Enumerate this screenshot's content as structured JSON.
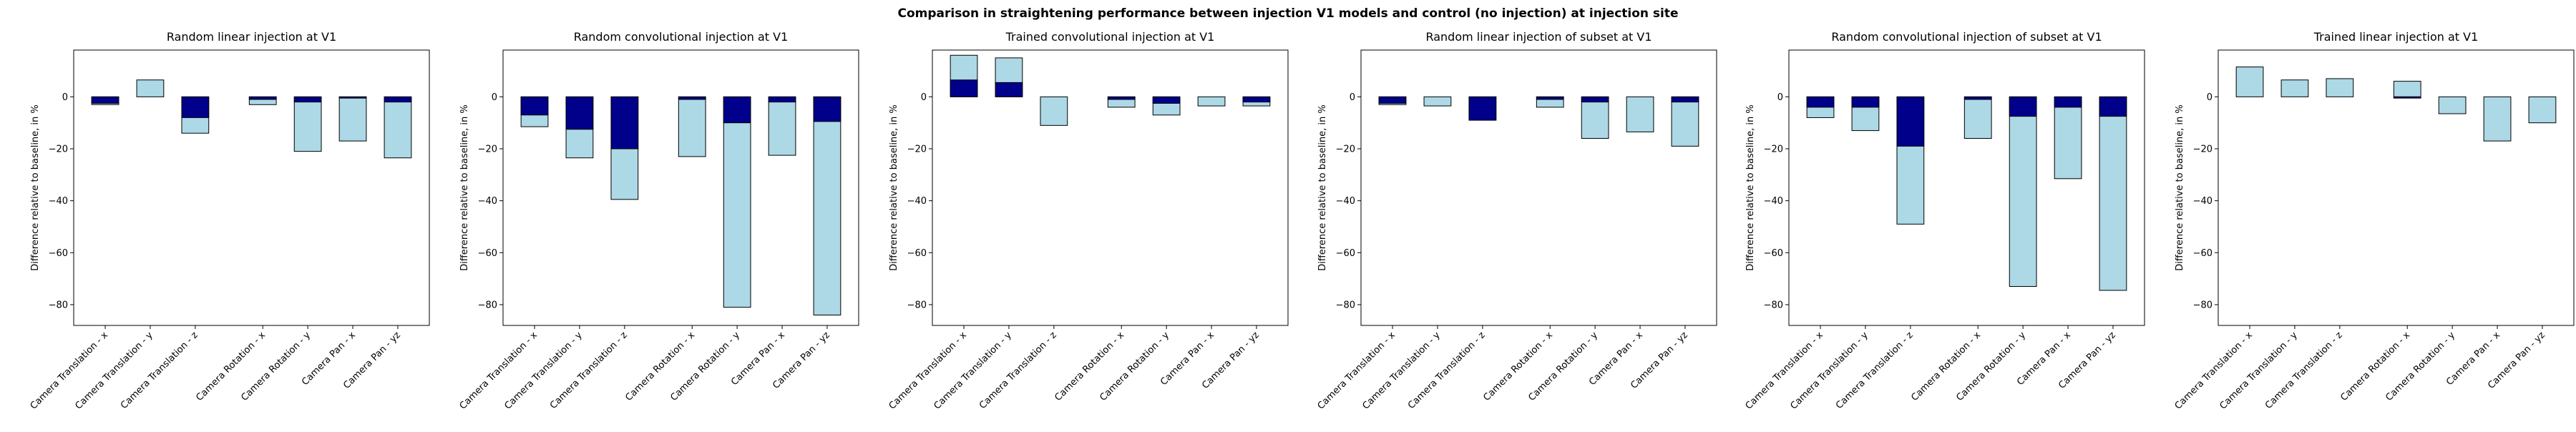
{
  "figure": {
    "suptitle": "Comparison in straightening performance between injection V1 models and control (no injection) at injection site"
  },
  "colors": {
    "light_bar": "#add8e6",
    "dark_bar": "#00008b",
    "edge": "#000000"
  },
  "chart_data": [
    {
      "type": "bar",
      "title": "Random linear injection at V1",
      "ylabel": "Difference relative to baseline, in %",
      "ylim": [
        -88,
        18
      ],
      "yticks": [
        0,
        -20,
        -40,
        -60,
        -80
      ],
      "grid": false,
      "categories": [
        "Camera Translation - x",
        "Camera Translation - y",
        "Camera Translation - z",
        "Camera Rotation - x",
        "Camera Rotation - y",
        "Camera Pan - x",
        "Camera Pan - yz"
      ],
      "series": [
        {
          "values": [
            -3,
            6.5,
            -14,
            -3,
            -21,
            -17,
            -23.5
          ]
        },
        {
          "values": [
            -2.5,
            null,
            -8,
            -1,
            -2,
            -0.5,
            -2
          ]
        }
      ]
    },
    {
      "type": "bar",
      "title": "Random convolutional injection at V1",
      "ylabel": "Difference relative to baseline, in %",
      "ylim": [
        -88,
        18
      ],
      "yticks": [
        0,
        -20,
        -40,
        -60,
        -80
      ],
      "grid": false,
      "categories": [
        "Camera Translation - x",
        "Camera Translation - y",
        "Camera Translation - z",
        "Camera Rotation - x",
        "Camera Rotation - y",
        "Camera Pan - x",
        "Camera Pan - yz"
      ],
      "series": [
        {
          "values": [
            -11.5,
            -23.5,
            -39.5,
            -23,
            -81,
            -22.5,
            -84
          ]
        },
        {
          "values": [
            -7,
            -12.5,
            -20,
            -1,
            -10,
            -2,
            -9.5
          ]
        }
      ]
    },
    {
      "type": "bar",
      "title": "Trained convolutional injection at V1",
      "ylabel": "Difference relative to baseline, in %",
      "ylim": [
        -88,
        18
      ],
      "yticks": [
        0,
        -20,
        -40,
        -60,
        -80
      ],
      "grid": false,
      "categories": [
        "Camera Translation - x",
        "Camera Translation - y",
        "Camera Translation - z",
        "Camera Rotation - x",
        "Camera Rotation - y",
        "Camera Pan - x",
        "Camera Pan - yz"
      ],
      "series": [
        {
          "values": [
            16,
            15,
            -11,
            -4,
            -7,
            -3.5,
            -3.5
          ]
        },
        {
          "values": [
            6.5,
            5.5,
            null,
            -1,
            -2.5,
            null,
            -2
          ]
        }
      ]
    },
    {
      "type": "bar",
      "title": "Random linear injection of subset at V1",
      "ylabel": "Difference relative to baseline, in %",
      "ylim": [
        -88,
        18
      ],
      "yticks": [
        0,
        -20,
        -40,
        -60,
        -80
      ],
      "grid": false,
      "categories": [
        "Camera Translation - x",
        "Camera Translation - y",
        "Camera Translation - z",
        "Camera Rotation - x",
        "Camera Rotation - y",
        "Camera Pan - x",
        "Camera Pan - yz"
      ],
      "series": [
        {
          "values": [
            -3,
            -3.5,
            -9,
            -4,
            -16,
            -13.5,
            -19
          ]
        },
        {
          "values": [
            -2.5,
            null,
            -9,
            -1,
            -2,
            null,
            -2
          ]
        }
      ]
    },
    {
      "type": "bar",
      "title": "Random convolutional injection of subset at V1",
      "ylabel": "Difference relative to baseline, in %",
      "ylim": [
        -88,
        18
      ],
      "yticks": [
        0,
        -20,
        -40,
        -60,
        -80
      ],
      "grid": false,
      "categories": [
        "Camera Translation - x",
        "Camera Translation - y",
        "Camera Translation - z",
        "Camera Rotation - x",
        "Camera Rotation - y",
        "Camera Pan - x",
        "Camera Pan - yz"
      ],
      "series": [
        {
          "values": [
            -8,
            -13,
            -49,
            -16,
            -73,
            -31.5,
            -74.5
          ]
        },
        {
          "values": [
            -4,
            -4,
            -19,
            -1,
            -7.5,
            -4,
            -7.5
          ]
        }
      ]
    },
    {
      "type": "bar",
      "title": "Trained linear injection at V1",
      "ylabel": "Difference relative to baseline, in %",
      "ylim": [
        -88,
        18
      ],
      "yticks": [
        0,
        -20,
        -40,
        -60,
        -80
      ],
      "grid": false,
      "categories": [
        "Camera Translation - x",
        "Camera Translation - y",
        "Camera Translation - z",
        "Camera Rotation - x",
        "Camera Rotation - y",
        "Camera Pan - x",
        "Camera Pan - yz"
      ],
      "series": [
        {
          "values": [
            11.5,
            6.5,
            7,
            6,
            -6.5,
            -17,
            -10
          ]
        },
        {
          "values": [
            null,
            null,
            null,
            -0.5,
            null,
            null,
            null
          ]
        }
      ]
    }
  ]
}
